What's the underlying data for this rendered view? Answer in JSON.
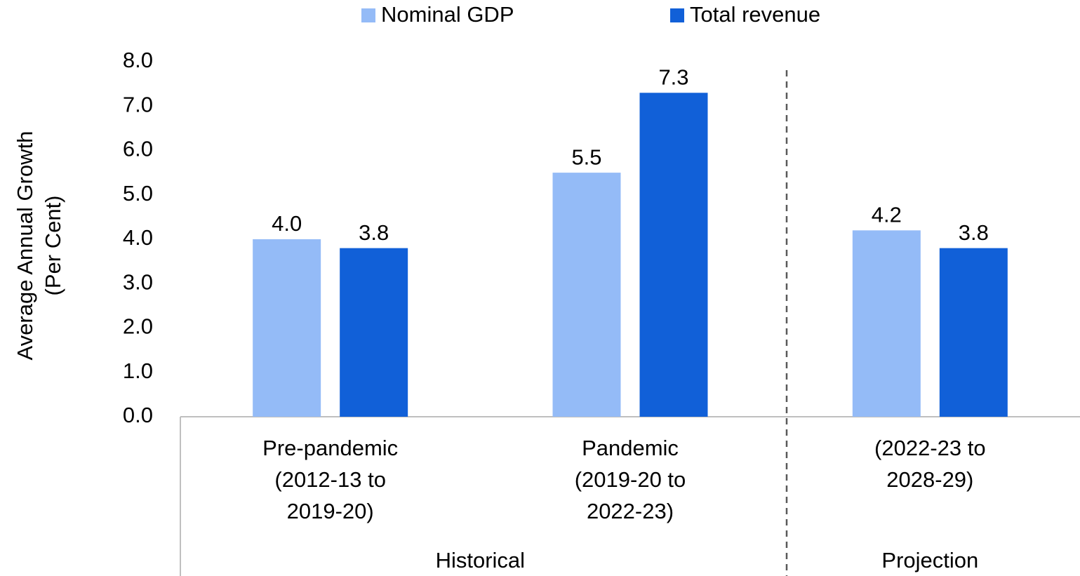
{
  "chart_data": {
    "type": "bar",
    "y_label": [
      "Average Annual Growth",
      "(Per Cent)"
    ],
    "categories": [
      [
        "Pre-pandemic",
        "(2012-13 to",
        "2019-20)"
      ],
      [
        "Pandemic",
        "(2019-20 to",
        "2022-23)"
      ],
      [
        "(2022-23 to",
        "2028-29)"
      ]
    ],
    "groups": [
      "Historical",
      "Projection"
    ],
    "series": [
      {
        "name": "Nominal GDP",
        "color": "#94bbf7",
        "values": [
          4.0,
          5.5,
          4.2
        ],
        "value_labels": [
          "4.0",
          "5.5",
          "4.2"
        ]
      },
      {
        "name": "Total revenue",
        "color": "#1160d8",
        "values": [
          3.8,
          7.3,
          3.8
        ],
        "value_labels": [
          "3.8",
          "7.3",
          "3.8"
        ]
      }
    ],
    "ylim": [
      0,
      8
    ],
    "yticks": [
      {
        "value": 0,
        "label": "0.0"
      },
      {
        "value": 1,
        "label": "1.0"
      },
      {
        "value": 2,
        "label": "2.0"
      },
      {
        "value": 3,
        "label": "3.0"
      },
      {
        "value": 4,
        "label": "4.0"
      },
      {
        "value": 5,
        "label": "5.0"
      },
      {
        "value": 6,
        "label": "6.0"
      },
      {
        "value": 7,
        "label": "7.0"
      },
      {
        "value": 8,
        "label": "8.0"
      }
    ],
    "legend": "top"
  }
}
